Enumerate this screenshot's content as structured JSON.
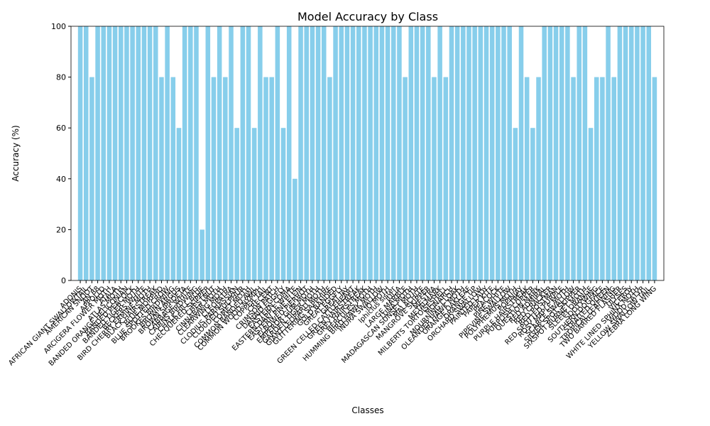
{
  "chart_data": {
    "type": "bar",
    "title": "Model Accuracy by Class",
    "x_label": "Classes",
    "y_label": "Accuracy (%)",
    "color": "#87ceeb",
    "categories": [
      "ADONIS",
      "AFRICAN GIANT SWALLOWTAIL",
      "AMERICAN SNOOT",
      "AN 88",
      "APPOLLO",
      "ARCIGERA FLOWER MOTH",
      "ATALA",
      "ATLAS MOTH",
      "BANDED ORANGE HELICONIAN",
      "BANDED PEACOCK",
      "BANDED TIGER MOTH",
      "BECKERS WHITE",
      "BIRD CHERRY ERMINE MOTH",
      "BLACK HAIRSTREAK",
      "BLUE MORPHO",
      "BLUE SPOTTED CROW",
      "BROOKES BIRDWING",
      "BROWN ARGUS",
      "BROWN SIPROETA",
      "CABBAGE WHITE",
      "CAIRNS BIRDWING",
      "CHALK HILL BLUE",
      "CHECQUERED SKIPPER",
      "CHESTNUT",
      "CINNABAR MOTH",
      "CLEARWING MOTH",
      "CLEOPATRA",
      "CLODIUS PARNASSIAN",
      "CLOUDED SULPHUR",
      "COMET MOTH",
      "COMMON BANDED AWL",
      "COMMON WOOD-NYMPH",
      "COPPER TAIL",
      "CRECENT",
      "CRIMSON PATCH",
      "DANAID EGGFLY",
      "EASTERN COMA",
      "EASTERN DAPPLE WHITE",
      "EASTERN PINE ELFIN",
      "ELBOWED PIERROT",
      "EMPEROR GUM MOTH",
      "GARDEN TIGER MOTH",
      "GIANT LEOPARD MOTH",
      "GLITTERING SAPPHIRE",
      "GOLD BANDED",
      "GREAT EGGFLY",
      "GREAT JAY",
      "GREEN CELLED CATTLEHEART",
      "GREEN HAIRSTREAK",
      "GREY HAIRSTREAK",
      "HERCULES MOTH",
      "HUMMING BIRD HAWK MOTH",
      "INDRA SWALLOW",
      "IO MOTH",
      "Iphiclus sister",
      "JULIA",
      "LARGE MARBLE",
      "LUNA MOTH",
      "MADAGASCAN SUNSET MOTH",
      "MALACHITE",
      "MANGROVE SKIPPER",
      "MESTRA",
      "METALMARK",
      "MILBERTS TORTOISESHELL",
      "MONARCH",
      "MOURNING CLOAK",
      "OLEANDER HAWK MOTH",
      "ORANGE OAKLEAF",
      "ORANGE TIP",
      "ORCHARD SWALLOW",
      "PAINTED LADY",
      "PAPER KITE",
      "PEACOCK",
      "PINE WHITE",
      "PIPEVINE SWALLOW",
      "POLYPHEMUS MOTH",
      "POPINJAY",
      "PURPLE HAIRSTREAK",
      "PURPLISH COPPER",
      "QUESTION MARK",
      "RED ADMIRAL",
      "RED CRACKER",
      "RED POSTMAN",
      "RED SPOTTED PURPLE",
      "ROSY MAPLE MOTH",
      "SCARCE SWALLOW",
      "SILVER SPOT SKIPPER",
      "SIXSPOT BURNET MOTH",
      "SLEEPY ORANGE",
      "SOOTYWING",
      "SOUTHERN DOGFACE",
      "STRAITED QUEEN",
      "TROPICAL LEAFWING",
      "TWO BARRED FLASHER",
      "ULYSES",
      "VICEROY",
      "WHITE LINED SPHINX MOTH",
      "WOOD SATYR",
      "YELLOW SWALLOW TAIL",
      "ZEBRA LONG WING"
    ],
    "values": [
      100,
      100,
      80,
      100,
      100,
      100,
      100,
      100,
      100,
      100,
      100,
      100,
      100,
      100,
      80,
      100,
      80,
      60,
      100,
      100,
      100,
      20,
      100,
      80,
      100,
      80,
      100,
      60,
      100,
      100,
      60,
      100,
      80,
      80,
      100,
      60,
      100,
      40,
      100,
      100,
      100,
      100,
      100,
      80,
      100,
      100,
      100,
      100,
      100,
      100,
      100,
      100,
      100,
      100,
      100,
      100,
      80,
      100,
      100,
      100,
      100,
      80,
      100,
      80,
      100,
      100,
      100,
      100,
      100,
      100,
      100,
      100,
      100,
      100,
      100,
      60,
      100,
      80,
      60,
      80,
      100,
      100,
      100,
      100,
      100,
      80,
      100,
      100,
      60,
      80,
      80,
      100,
      80,
      100,
      100,
      100,
      100,
      100,
      100,
      80
    ],
    "ylim": [
      0,
      100
    ],
    "yticks": [
      0,
      20,
      40,
      60,
      80,
      100
    ]
  }
}
